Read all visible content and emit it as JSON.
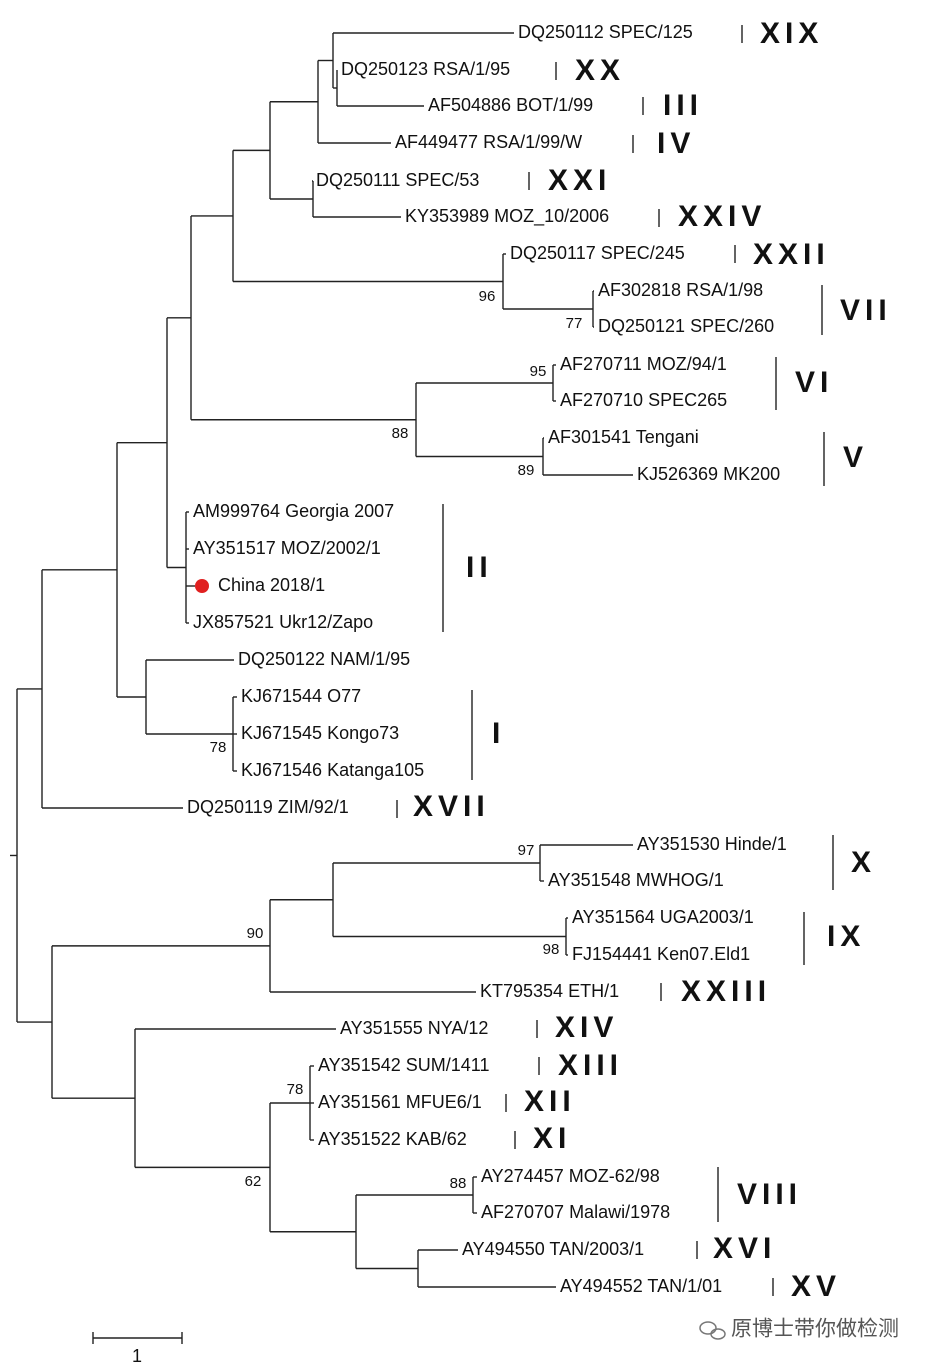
{
  "leaves": [
    "DQ250112 SPEC/125",
    "DQ250123 RSA/1/95",
    "AF504886 BOT/1/99",
    "AF449477 RSA/1/99/W",
    "DQ250111 SPEC/53",
    "KY353989 MOZ_10/2006",
    "DQ250117 SPEC/245",
    "AF302818 RSA/1/98",
    "DQ250121 SPEC/260",
    "AF270711 MOZ/94/1",
    "AF270710 SPEC265",
    "AF301541 Tengani",
    "KJ526369 MK200",
    "AM999764 Georgia 2007",
    "AY351517 MOZ/2002/1",
    "China 2018/1",
    "JX857521 Ukr12/Zapo",
    "DQ250122 NAM/1/95",
    "KJ671544 O77",
    "KJ671545 Kongo73",
    "KJ671546 Katanga105",
    "DQ250119 ZIM/92/1",
    "AY351530 Hinde/1",
    "AY351548 MWHOG/1",
    "AY351564 UGA2003/1",
    "FJ154441 Ken07.Eld1",
    "KT795354 ETH/1",
    "AY351555 NYA/12",
    "AY351542 SUM/1411",
    "AY351561 MFUE6/1",
    "AY351522 KAB/62",
    "AY274457 MOZ-62/98",
    "AF270707 Malawi/1978",
    "AY494550 TAN/2003/1",
    "AY494552 TAN/1/01"
  ],
  "genotypes": [
    "XIX",
    "XX",
    "III",
    "IV",
    "XXI",
    "XXIV",
    "XXII",
    "VII",
    "VI",
    "V",
    "II",
    "I",
    "XVII",
    "X",
    "IX",
    "XXIII",
    "XIV",
    "XIII",
    "XII",
    "XI",
    "VIII",
    "XVI",
    "XV"
  ],
  "bootstraps": [
    96,
    77,
    95,
    88,
    89,
    78,
    97,
    98,
    90,
    78,
    62,
    88
  ],
  "scale_label": 1,
  "watermark": "原博士带你做检测"
}
